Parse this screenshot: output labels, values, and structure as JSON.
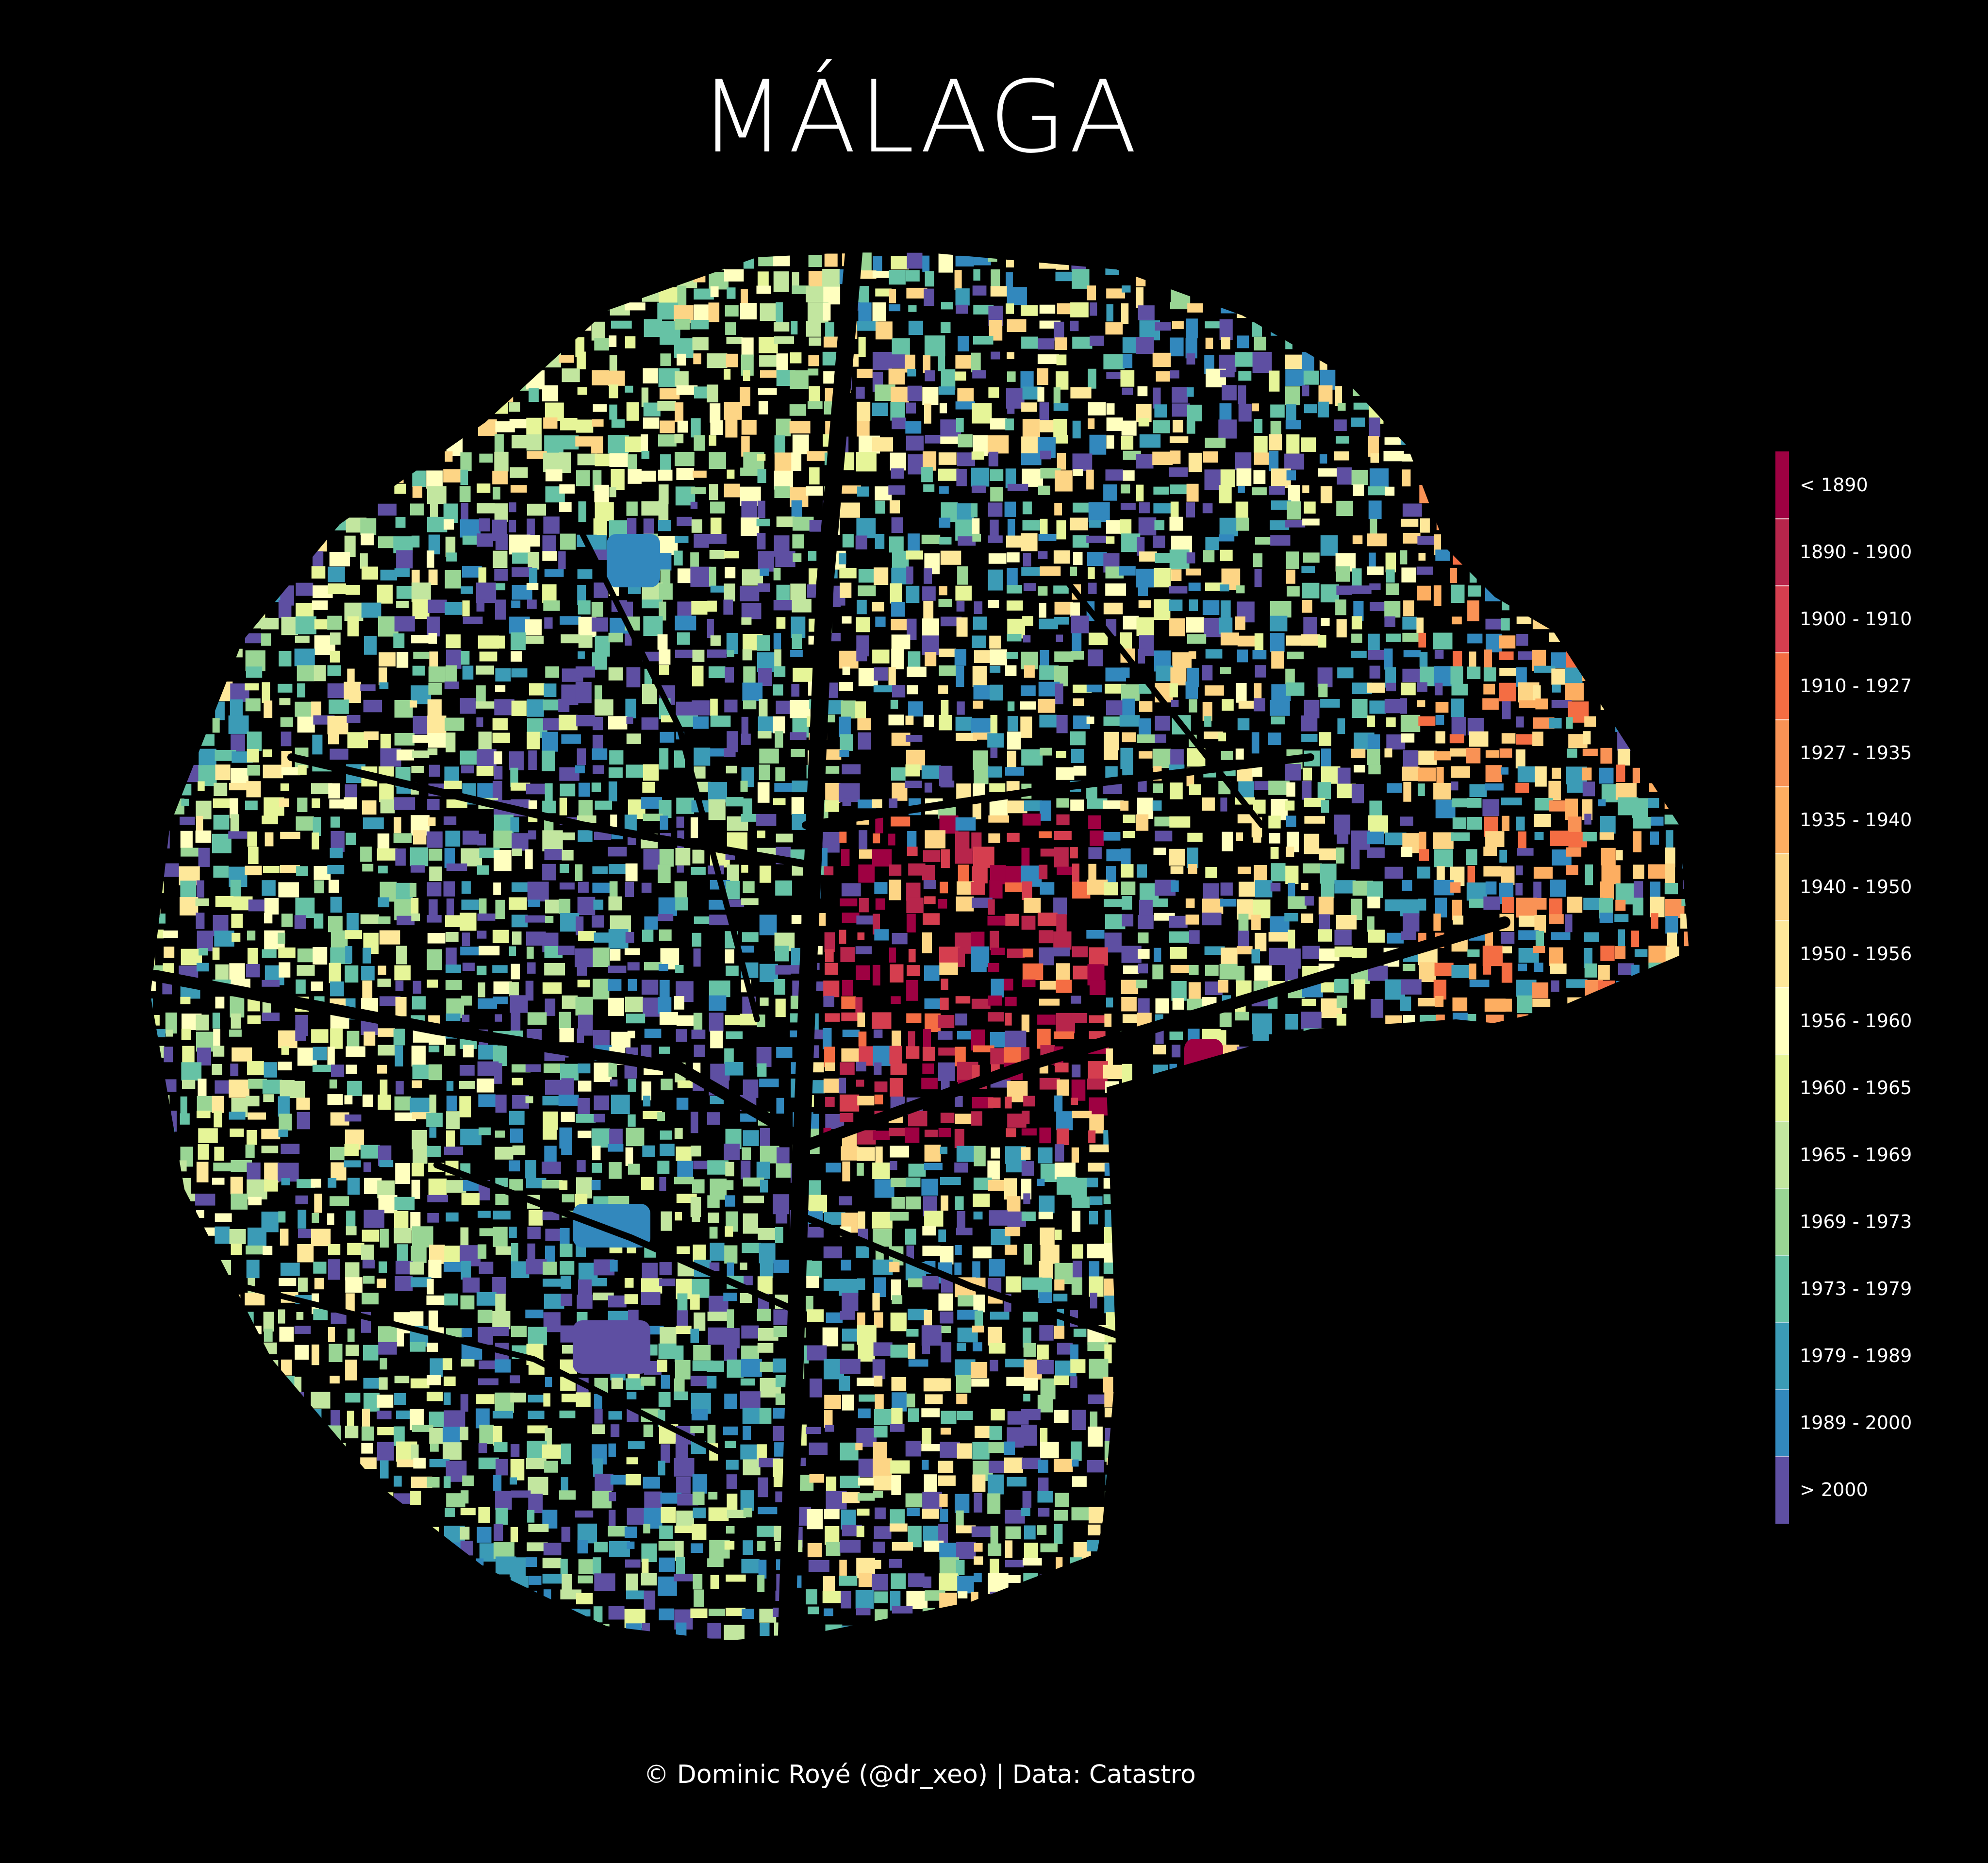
{
  "title": "MÁLAGA",
  "caption": "© Dominic Royé (@dr_xeo) | Data: Catastro",
  "legend": {
    "items": [
      {
        "label": "< 1890",
        "color": "#9e0142"
      },
      {
        "label": "1890 - 1900",
        "color": "#b7254b"
      },
      {
        "label": "1900 - 1910",
        "color": "#d53e4f"
      },
      {
        "label": "1910 - 1927",
        "color": "#f46d43"
      },
      {
        "label": "1927 - 1935",
        "color": "#f99255"
      },
      {
        "label": "1935 - 1940",
        "color": "#fdae61"
      },
      {
        "label": "1940 - 1950",
        "color": "#fdd585"
      },
      {
        "label": "1950 - 1956",
        "color": "#fee89a"
      },
      {
        "label": "1956 - 1960",
        "color": "#ffffbf"
      },
      {
        "label": "1960 - 1965",
        "color": "#e6f598"
      },
      {
        "label": "1965 - 1969",
        "color": "#c2e69f"
      },
      {
        "label": "1969 - 1973",
        "color": "#99d594"
      },
      {
        "label": "1973 - 1979",
        "color": "#66c2a5"
      },
      {
        "label": "1979 - 1989",
        "color": "#3b9bb6"
      },
      {
        "label": "1989 - 2000",
        "color": "#3288bd"
      },
      {
        "label": "> 2000",
        "color": "#5e4fa2"
      }
    ]
  }
}
